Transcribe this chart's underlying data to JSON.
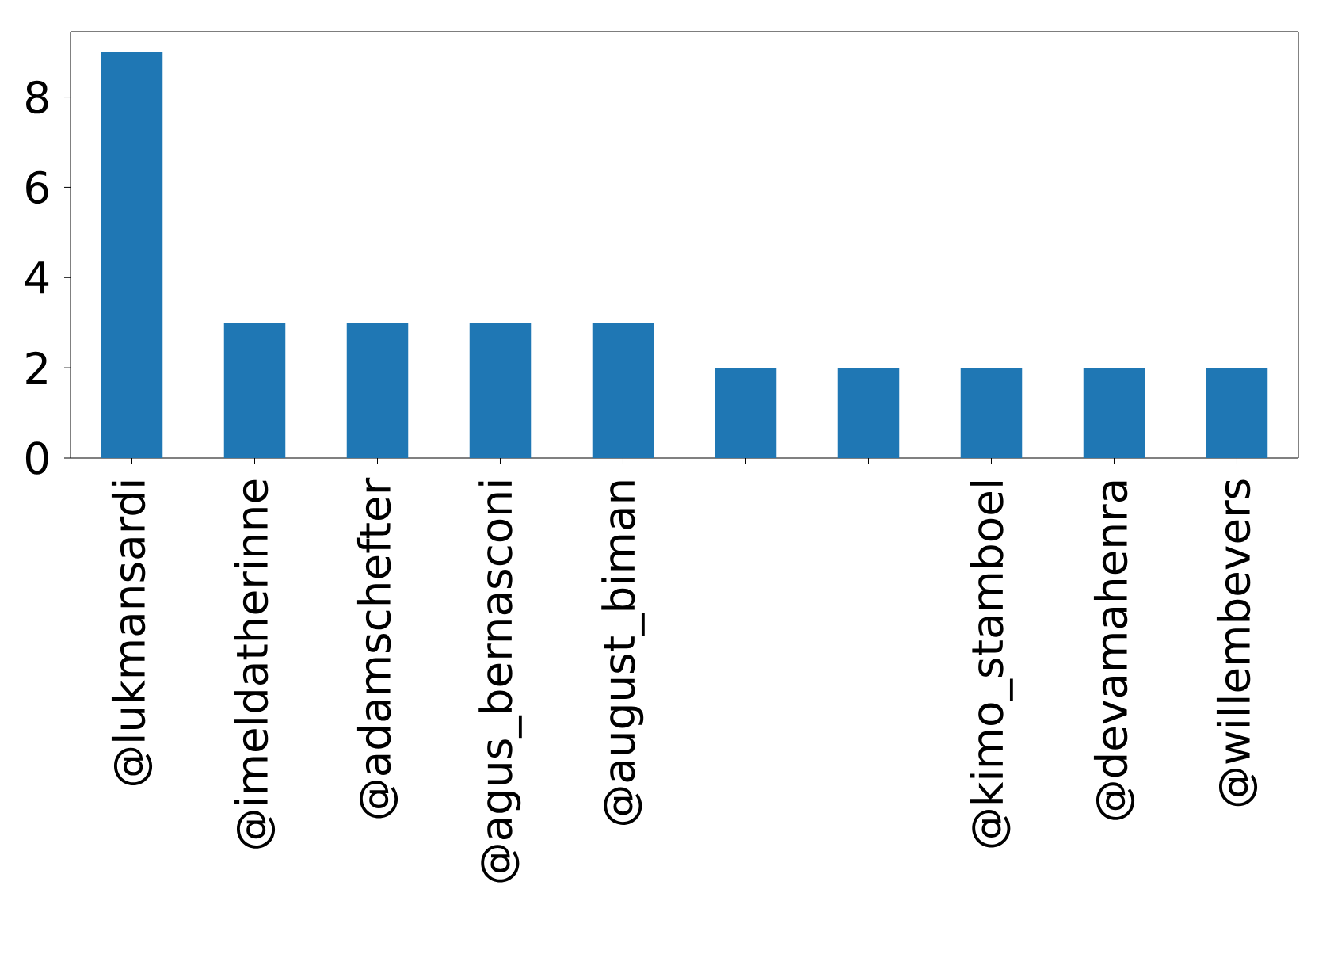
{
  "chart_data": {
    "type": "bar",
    "categories": [
      "@lukmansardi",
      "@imeldatherinne",
      "@adamschefter",
      "@agus_bernasconi",
      "@august_biman",
      null,
      null,
      "@kimo_stamboel",
      "@devamahenra",
      "@willembevers"
    ],
    "values": [
      9,
      3,
      3,
      3,
      3,
      2,
      2,
      2,
      2,
      2
    ],
    "color": "#1f77b4",
    "ylim": [
      0,
      9.45
    ],
    "yticks": [
      0,
      2,
      4,
      6,
      8
    ]
  }
}
